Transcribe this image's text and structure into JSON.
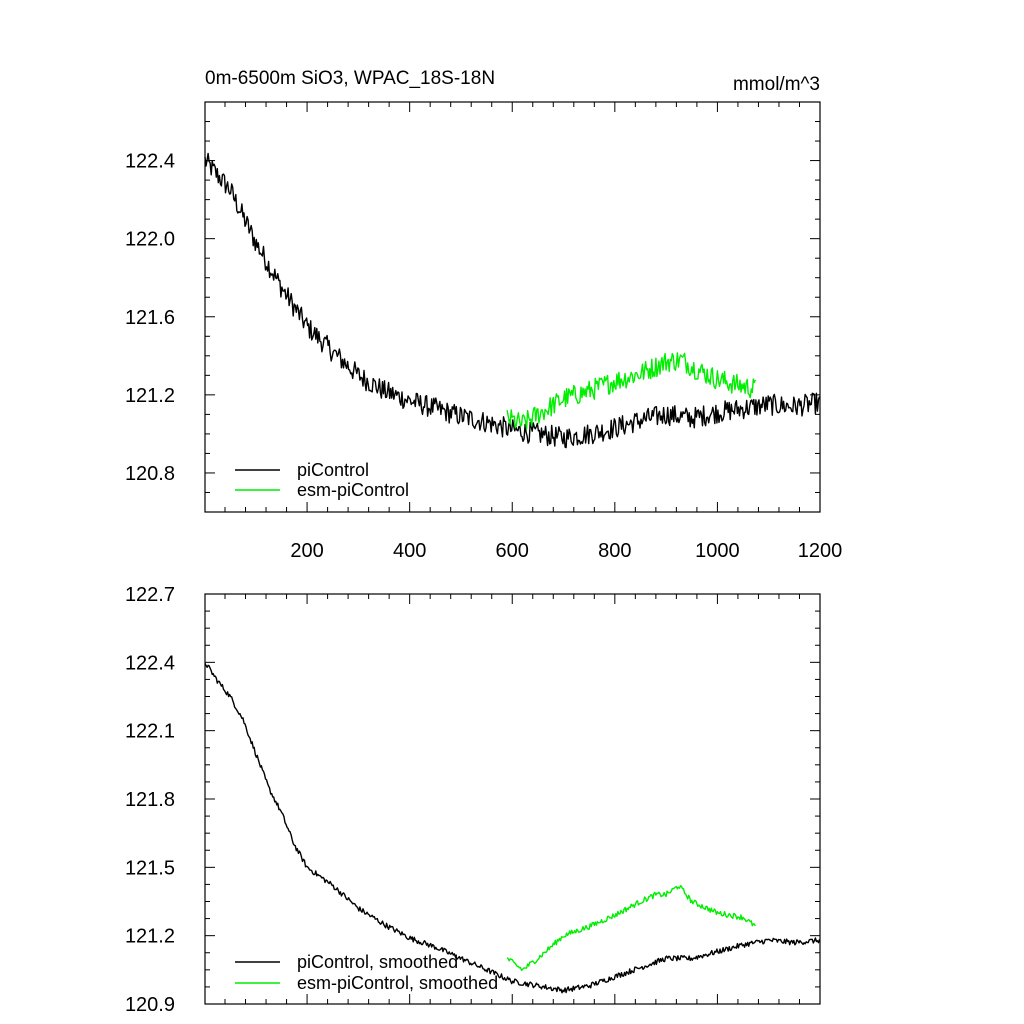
{
  "chart_data": [
    {
      "type": "line",
      "title": "0m-6500m SiO3, WPAC_18S-18N",
      "units": "mmol/m^3",
      "xlim": [
        1,
        1200
      ],
      "ylim": [
        120.6,
        122.7
      ],
      "xticks": [
        200,
        400,
        600,
        800,
        1000,
        1200
      ],
      "xtick_labels": [
        "200",
        "400",
        "600",
        "800",
        "1000",
        "1200"
      ],
      "yticks": [
        120.8,
        121.2,
        121.6,
        122.0,
        122.4
      ],
      "ytick_labels": [
        "120.8",
        "121.2",
        "121.6",
        "122.0",
        "122.4"
      ],
      "legend_position": "bottom-left",
      "series": [
        {
          "name": "piControl",
          "color": "#000000",
          "noise": 0.055,
          "x": [
            1,
            50,
            100,
            150,
            200,
            250,
            300,
            350,
            400,
            450,
            500,
            550,
            600,
            650,
            700,
            750,
            800,
            850,
            900,
            950,
            1000,
            1050,
            1100,
            1150,
            1200
          ],
          "values": [
            122.4,
            122.25,
            121.98,
            121.75,
            121.55,
            121.42,
            121.3,
            121.22,
            121.17,
            121.13,
            121.09,
            121.06,
            121.02,
            121.0,
            120.98,
            121.0,
            121.03,
            121.07,
            121.1,
            121.08,
            121.11,
            121.13,
            121.15,
            121.14,
            121.16
          ]
        },
        {
          "name": "esm-piControl",
          "color": "#00ee00",
          "noise": 0.055,
          "x": [
            590,
            620,
            650,
            700,
            750,
            800,
            850,
            900,
            930,
            960,
            1000,
            1040,
            1075
          ],
          "values": [
            121.08,
            121.05,
            121.1,
            121.18,
            121.22,
            121.27,
            121.31,
            121.37,
            121.38,
            121.33,
            121.28,
            121.25,
            121.23
          ]
        }
      ]
    },
    {
      "type": "line",
      "xlim": [
        1,
        1200
      ],
      "ylim": [
        120.9,
        122.7
      ],
      "yticks": [
        120.9,
        121.2,
        121.5,
        121.8,
        122.1,
        122.4,
        122.7
      ],
      "ytick_labels": [
        "120.9",
        "121.2",
        "121.5",
        "121.8",
        "122.1",
        "122.4",
        "122.7"
      ],
      "legend_position": "bottom-left",
      "series": [
        {
          "name": "piControl, smoothed",
          "color": "#000000",
          "noise": 0.012,
          "x": [
            1,
            25,
            50,
            75,
            100,
            125,
            150,
            175,
            200,
            250,
            300,
            350,
            400,
            450,
            500,
            550,
            600,
            650,
            700,
            750,
            800,
            850,
            900,
            950,
            1000,
            1050,
            1100,
            1150,
            1200
          ],
          "values": [
            122.4,
            122.32,
            122.25,
            122.15,
            122.0,
            121.85,
            121.74,
            121.6,
            121.5,
            121.42,
            121.32,
            121.25,
            121.19,
            121.15,
            121.1,
            121.05,
            121.0,
            120.98,
            120.96,
            120.98,
            121.02,
            121.06,
            121.1,
            121.1,
            121.13,
            121.16,
            121.18,
            121.17,
            121.18
          ]
        },
        {
          "name": "esm-piControl, smoothed",
          "color": "#00ee00",
          "noise": 0.012,
          "x": [
            590,
            620,
            650,
            700,
            750,
            800,
            850,
            880,
            900,
            925,
            950,
            1000,
            1050,
            1075
          ],
          "values": [
            121.1,
            121.05,
            121.1,
            121.2,
            121.24,
            121.29,
            121.35,
            121.38,
            121.38,
            121.42,
            121.35,
            121.3,
            121.28,
            121.24
          ]
        }
      ]
    }
  ]
}
